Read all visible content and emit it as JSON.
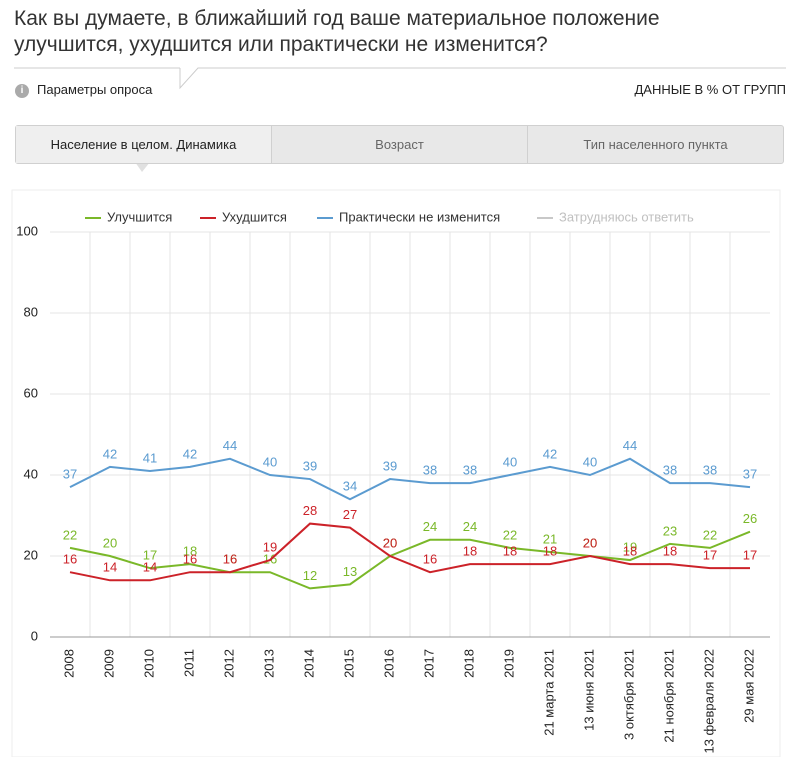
{
  "header": {
    "title": "Как вы думаете, в ближайший год ваше материальное положение улучшится, ухудшится или практически не изменится?",
    "params": "Параметры опроса",
    "units": "ДАННЫЕ В % ОТ ГРУПП"
  },
  "tabs": [
    "Население в целом. Динамика",
    "Возраст",
    "Тип населенного пункта"
  ],
  "chart_data": {
    "type": "line",
    "categories": [
      "2008",
      "2009",
      "2010",
      "2011",
      "2012",
      "2013",
      "2014",
      "2015",
      "2016",
      "2017",
      "2018",
      "2019",
      "21 марта 2021",
      "13 июня 2021",
      "3 октября 2021",
      "21 ноября 2021",
      "13 февраля 2022",
      "29 мая 2022"
    ],
    "series": [
      {
        "name": "Улучшится",
        "color": "#7ab829",
        "visible": true,
        "values": [
          22,
          20,
          17,
          18,
          16,
          16,
          12,
          13,
          20,
          24,
          24,
          22,
          21,
          20,
          19,
          23,
          22,
          26
        ]
      },
      {
        "name": "Ухудшится",
        "color": "#cc2229",
        "visible": true,
        "values": [
          16,
          14,
          14,
          16,
          16,
          19,
          28,
          27,
          20,
          16,
          18,
          18,
          18,
          20,
          18,
          18,
          17,
          17
        ]
      },
      {
        "name": "Практически не изменится",
        "color": "#5b9bd0",
        "visible": true,
        "values": [
          37,
          42,
          41,
          42,
          44,
          40,
          39,
          34,
          39,
          38,
          38,
          40,
          42,
          40,
          44,
          38,
          38,
          37
        ]
      },
      {
        "name": "Затрудняюсь ответить",
        "color": "#c8c8c8",
        "visible": false,
        "values": [
          null,
          null,
          null,
          null,
          null,
          null,
          null,
          null,
          null,
          null,
          null,
          null,
          null,
          null,
          null,
          null,
          null,
          null
        ]
      }
    ],
    "ylim": [
      0,
      100
    ],
    "yticks": [
      0,
      20,
      40,
      60,
      80,
      100
    ],
    "grid": true,
    "legend": "top"
  }
}
